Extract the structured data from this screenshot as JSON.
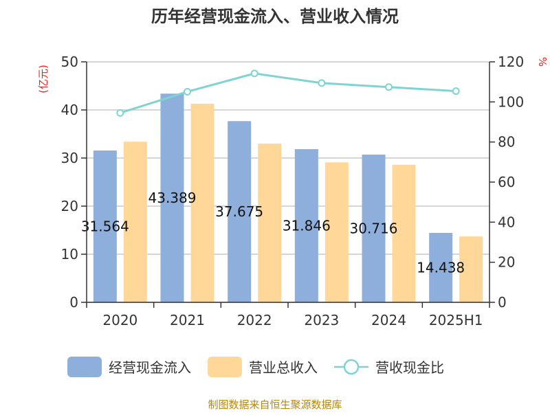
{
  "chart_data": {
    "type": "bar",
    "title": "历年经营现金流入、营业收入情况",
    "categories": [
      "2020",
      "2021",
      "2022",
      "2023",
      "2024",
      "2025H1"
    ],
    "y_left": {
      "unit": "(亿元)",
      "ylim": [
        0,
        50
      ],
      "ticks": [
        0,
        10,
        20,
        30,
        40,
        50
      ]
    },
    "y_right": {
      "unit": "%",
      "ylim": [
        0,
        120
      ],
      "ticks": [
        0,
        20,
        40,
        60,
        80,
        100,
        120
      ]
    },
    "series": [
      {
        "name": "经营现金流入",
        "type": "bar",
        "axis": "left",
        "color": "#8eaedb",
        "values": [
          31.564,
          43.389,
          37.675,
          31.846,
          30.716,
          14.438
        ],
        "labels": [
          "31.564",
          "43.389",
          "37.675",
          "31.846",
          "30.716",
          "14.438"
        ]
      },
      {
        "name": "营业总收入",
        "type": "bar",
        "axis": "left",
        "color": "#ffd899",
        "values": [
          33.4,
          41.3,
          33.0,
          29.1,
          28.6,
          13.7
        ]
      },
      {
        "name": "营收现金比",
        "type": "line",
        "axis": "right",
        "color": "#7fd3d3",
        "values": [
          94.5,
          105.1,
          114.2,
          109.4,
          107.4,
          105.4
        ]
      }
    ],
    "grid": true,
    "legend_position": "bottom"
  },
  "source_text": "制图数据来自恒生聚源数据库"
}
